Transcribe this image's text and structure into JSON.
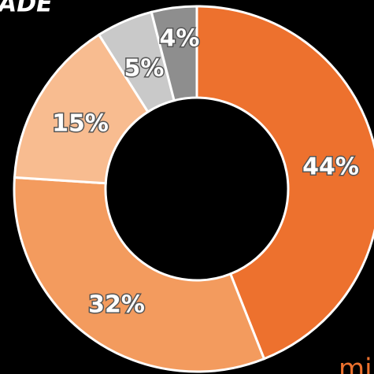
{
  "chart_data": {
    "type": "donut",
    "title": "ADE",
    "categories": [
      null,
      null,
      null,
      null,
      null
    ],
    "values": [
      44,
      32,
      15,
      5,
      4
    ],
    "value_labels": [
      "44%",
      "32%",
      "15%",
      "5%",
      "4%"
    ],
    "colors": [
      "#ed712e",
      "#f39b5e",
      "#f8bc90",
      "#c9c9c9",
      "#8e8e8e"
    ],
    "annotation": "mi"
  }
}
